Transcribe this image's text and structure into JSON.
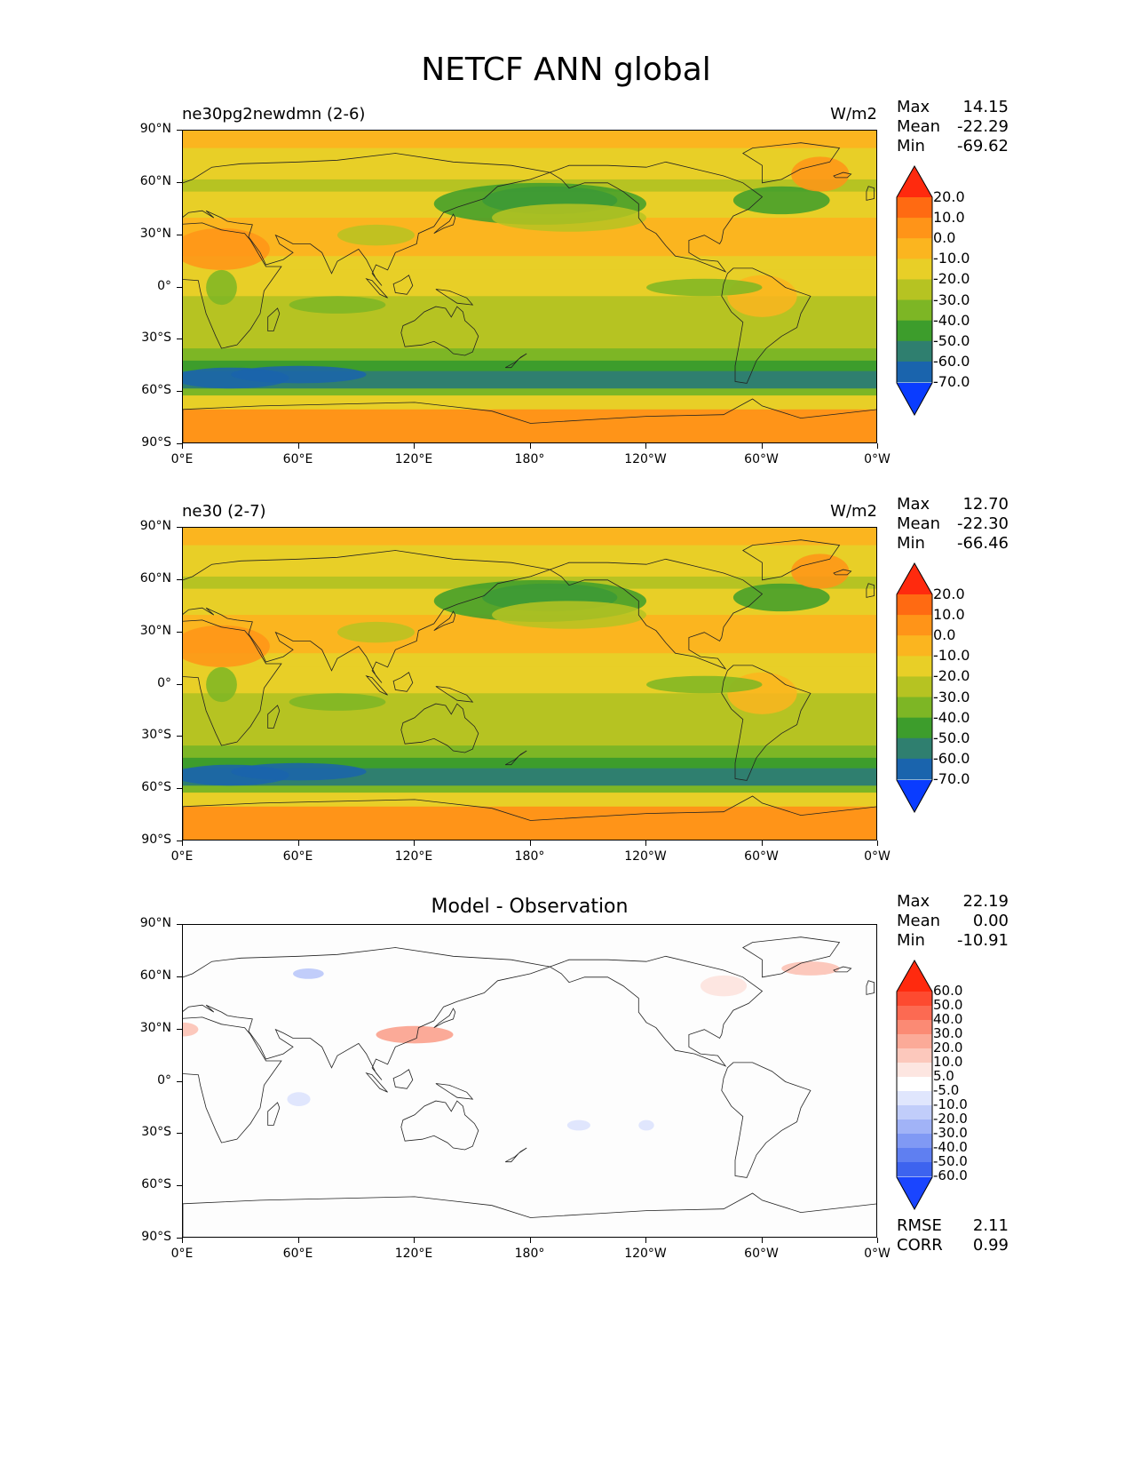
{
  "title": "NETCF ANN global",
  "panels": [
    {
      "left_title": "ne30pg2newdmn (2-6)",
      "center_title": "",
      "units": "W/m2",
      "stats": {
        "max_label": "Max",
        "max": "14.15",
        "mean_label": "Mean",
        "mean": "-22.29",
        "min_label": "Min",
        "min": "-69.62"
      },
      "colorbar": {
        "levels": [
          "20.0",
          "10.0",
          "0.0",
          "-10.0",
          "-20.0",
          "-30.0",
          "-40.0",
          "-50.0",
          "-60.0",
          "-70.0"
        ],
        "colors": [
          "#ff2a0e",
          "#ff6a12",
          "#ff9418",
          "#fbb51f",
          "#e8cf27",
          "#b6c322",
          "#7db625",
          "#3d9d2c",
          "#2f7f6f",
          "#1a64ad",
          "#0a3cff"
        ]
      }
    },
    {
      "left_title": "ne30 (2-7)",
      "center_title": "",
      "units": "W/m2",
      "stats": {
        "max_label": "Max",
        "max": "12.70",
        "mean_label": "Mean",
        "mean": "-22.30",
        "min_label": "Min",
        "min": "-66.46"
      },
      "colorbar": {
        "levels": [
          "20.0",
          "10.0",
          "0.0",
          "-10.0",
          "-20.0",
          "-30.0",
          "-40.0",
          "-50.0",
          "-60.0",
          "-70.0"
        ],
        "colors": [
          "#ff2a0e",
          "#ff6a12",
          "#ff9418",
          "#fbb51f",
          "#e8cf27",
          "#b6c322",
          "#7db625",
          "#3d9d2c",
          "#2f7f6f",
          "#1a64ad",
          "#0a3cff"
        ]
      }
    },
    {
      "left_title": "",
      "center_title": "Model - Observation",
      "units": "",
      "stats": {
        "max_label": "Max",
        "max": "22.19",
        "mean_label": "Mean",
        "mean": "0.00",
        "min_label": "Min",
        "min": "-10.91"
      },
      "extra": {
        "rmse_label": "RMSE",
        "rmse": "2.11",
        "corr_label": "CORR",
        "corr": "0.99"
      },
      "colorbar": {
        "levels": [
          "60.0",
          "50.0",
          "40.0",
          "30.0",
          "20.0",
          "10.0",
          "5.0",
          "-5.0",
          "-10.0",
          "-20.0",
          "-30.0",
          "-40.0",
          "-50.0",
          "-60.0"
        ],
        "colors": [
          "#ff2a0e",
          "#fd4a30",
          "#fc6a52",
          "#fb8a74",
          "#fbaa98",
          "#fcc8bc",
          "#fde6e1",
          "#ffffff",
          "#e0e6fd",
          "#c1cdfa",
          "#a1b3f7",
          "#8099f4",
          "#5f7ff1",
          "#3d63ef",
          "#1a45ff"
        ]
      }
    }
  ],
  "axes": {
    "y_ticks": [
      "90°N",
      "60°N",
      "30°N",
      "0°",
      "30°S",
      "60°S",
      "90°S"
    ],
    "x_ticks": [
      "0°E",
      "60°E",
      "120°E",
      "180°",
      "120°W",
      "60°W",
      "0°W"
    ]
  }
}
